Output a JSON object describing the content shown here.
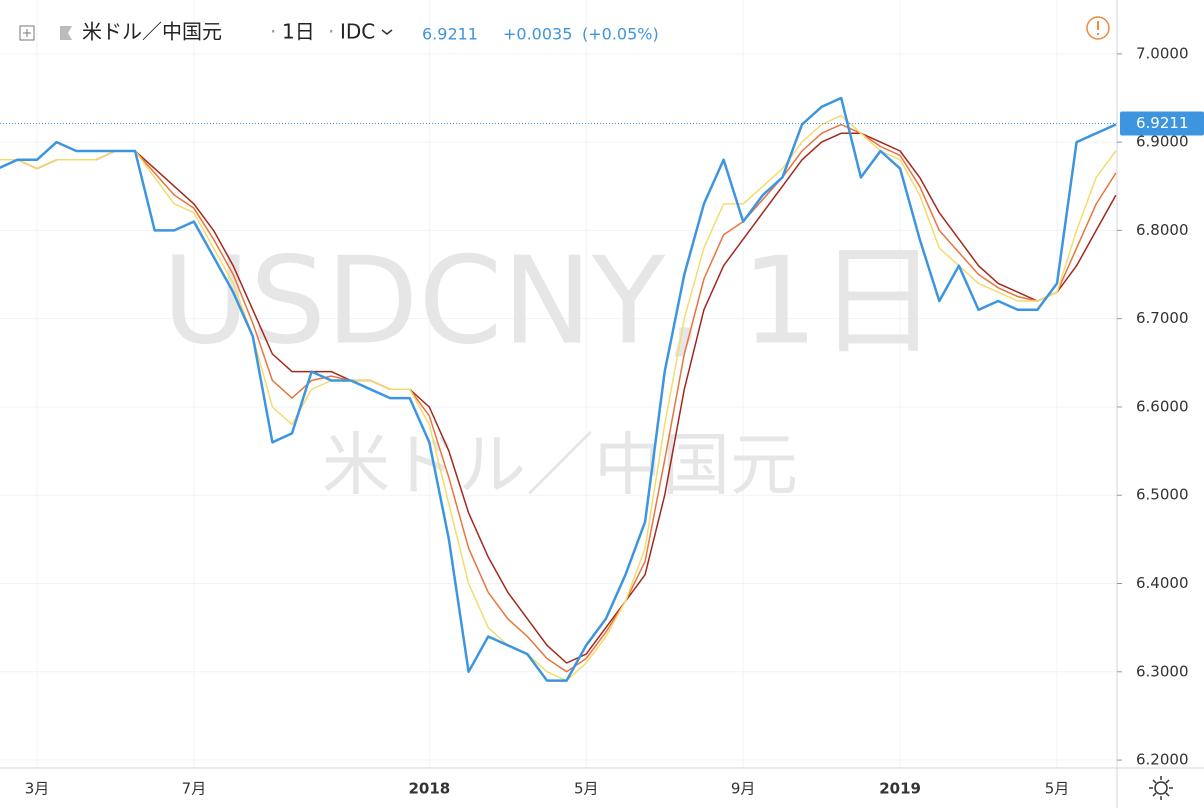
{
  "chart_data": {
    "type": "line",
    "symbol_name": "米ドル／中国元",
    "interval": "1日",
    "source": "IDC",
    "last_value": 6.9211,
    "change": "+0.0035",
    "change_percent": "(+0.05%)",
    "watermark": "USDCNY, 1日",
    "categories": [
      null,
      null,
      "3月",
      null,
      null,
      null,
      null,
      null,
      null,
      null,
      "7月",
      null,
      null,
      null,
      null,
      null,
      null,
      null,
      null,
      null,
      null,
      null,
      "2018",
      null,
      null,
      null,
      null,
      null,
      null,
      null,
      "5月",
      null,
      null,
      null,
      null,
      null,
      null,
      null,
      "9月",
      null,
      null,
      null,
      null,
      null,
      null,
      null,
      "2019",
      null,
      null,
      null,
      null,
      null,
      null,
      null,
      "5月",
      null,
      null,
      null
    ],
    "ylim": [
      6.191,
      7.061
    ],
    "yticks": [
      {
        "value": 6.2,
        "label": "6.2000"
      },
      {
        "value": 6.3,
        "label": "6.3000"
      },
      {
        "value": 6.4,
        "label": "6.4000"
      },
      {
        "value": 6.5,
        "label": "6.5000"
      },
      {
        "value": 6.6,
        "label": "6.6000"
      },
      {
        "value": 6.7,
        "label": "6.7000"
      },
      {
        "value": 6.8,
        "label": "6.8000"
      },
      {
        "value": 6.9,
        "label": "6.9000"
      },
      {
        "value": 7.0,
        "label": "7.0000"
      }
    ],
    "grid": true,
    "series": [
      {
        "color": "#a3281c",
        "values": [
          6.88,
          6.88,
          6.87,
          6.88,
          6.88,
          6.88,
          6.89,
          6.89,
          6.87,
          6.85,
          6.83,
          6.8,
          6.76,
          6.71,
          6.66,
          6.64,
          6.64,
          6.64,
          6.63,
          6.63,
          6.62,
          6.62,
          6.6,
          6.55,
          6.48,
          6.43,
          6.39,
          6.36,
          6.33,
          6.31,
          6.32,
          6.35,
          6.38,
          6.41,
          6.5,
          6.62,
          6.71,
          6.76,
          6.79,
          6.82,
          6.85,
          6.88,
          6.9,
          6.91,
          6.91,
          6.9,
          6.89,
          6.86,
          6.82,
          6.79,
          6.76,
          6.74,
          6.73,
          6.72,
          6.73,
          6.76,
          6.8,
          6.84
        ]
      },
      {
        "color": "#e8743f",
        "values": [
          6.88,
          6.88,
          6.87,
          6.88,
          6.88,
          6.88,
          6.89,
          6.89,
          6.865,
          6.84,
          6.825,
          6.79,
          6.75,
          6.695,
          6.63,
          6.61,
          6.63,
          6.635,
          6.63,
          6.63,
          6.62,
          6.62,
          6.59,
          6.52,
          6.44,
          6.39,
          6.36,
          6.34,
          6.315,
          6.3,
          6.315,
          6.345,
          6.38,
          6.425,
          6.54,
          6.66,
          6.745,
          6.795,
          6.81,
          6.835,
          6.86,
          6.89,
          6.91,
          6.92,
          6.91,
          6.895,
          6.885,
          6.85,
          6.8,
          6.775,
          6.75,
          6.735,
          6.725,
          6.72,
          6.73,
          6.78,
          6.83,
          6.865
        ]
      },
      {
        "color": "#f3dc6e",
        "values": [
          6.88,
          6.88,
          6.87,
          6.88,
          6.88,
          6.88,
          6.89,
          6.89,
          6.86,
          6.83,
          6.82,
          6.78,
          6.74,
          6.68,
          6.6,
          6.58,
          6.62,
          6.63,
          6.63,
          6.63,
          6.62,
          6.62,
          6.58,
          6.49,
          6.4,
          6.35,
          6.33,
          6.32,
          6.3,
          6.29,
          6.31,
          6.34,
          6.38,
          6.44,
          6.58,
          6.7,
          6.78,
          6.83,
          6.83,
          6.85,
          6.87,
          6.9,
          6.92,
          6.93,
          6.91,
          6.89,
          6.88,
          6.84,
          6.78,
          6.76,
          6.74,
          6.73,
          6.72,
          6.72,
          6.73,
          6.8,
          6.86,
          6.89
        ]
      },
      {
        "color": "#3d95e0",
        "values": [
          6.87,
          6.88,
          6.88,
          6.9,
          6.89,
          6.89,
          6.89,
          6.89,
          6.8,
          6.8,
          6.81,
          6.77,
          6.73,
          6.68,
          6.56,
          6.57,
          6.64,
          6.63,
          6.63,
          6.62,
          6.61,
          6.61,
          6.56,
          6.45,
          6.3,
          6.34,
          6.33,
          6.32,
          6.29,
          6.29,
          6.33,
          6.36,
          6.41,
          6.47,
          6.64,
          6.75,
          6.83,
          6.88,
          6.81,
          6.84,
          6.86,
          6.92,
          6.94,
          6.95,
          6.86,
          6.89,
          6.87,
          6.79,
          6.72,
          6.76,
          6.71,
          6.72,
          6.71,
          6.71,
          6.74,
          6.9,
          6.91,
          6.92
        ]
      }
    ]
  }
}
